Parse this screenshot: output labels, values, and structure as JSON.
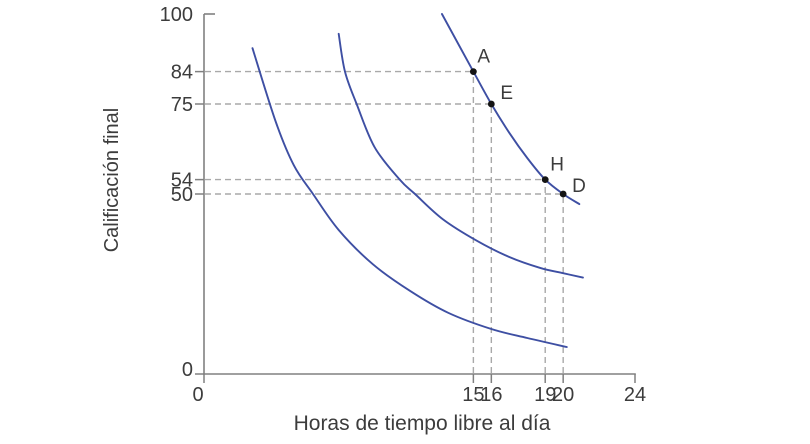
{
  "chart_data": {
    "type": "line",
    "title": "",
    "xlabel": "Horas de tiempo libre al día",
    "ylabel": "Calificación final",
    "xlim": [
      0,
      24
    ],
    "ylim": [
      0,
      100
    ],
    "grid": false,
    "legend": null,
    "x_ticks": [
      {
        "value": 0,
        "label": "0"
      },
      {
        "value": 15,
        "label": "15"
      },
      {
        "value": 16,
        "label": "16"
      },
      {
        "value": 19,
        "label": "19"
      },
      {
        "value": 20,
        "label": "20"
      },
      {
        "value": 24,
        "label": "24"
      }
    ],
    "y_ticks": [
      {
        "value": 0,
        "label": "0"
      },
      {
        "value": 50,
        "label": "50"
      },
      {
        "value": 54,
        "label": "54"
      },
      {
        "value": 75,
        "label": "75"
      },
      {
        "value": 84,
        "label": "84"
      },
      {
        "value": 100,
        "label": "100"
      }
    ],
    "series": [
      {
        "name": "indifference-curve-1",
        "points": [
          [
            2.7,
            90.5
          ],
          [
            4,
            70
          ],
          [
            5,
            58
          ],
          [
            6.07,
            50
          ],
          [
            7.5,
            40
          ],
          [
            9.4,
            30.5
          ],
          [
            11.5,
            23
          ],
          [
            13.6,
            17
          ],
          [
            16,
            12.5
          ],
          [
            18,
            10
          ],
          [
            20.2,
            7.5
          ]
        ]
      },
      {
        "name": "indifference-curve-2",
        "points": [
          [
            7.5,
            94.5
          ],
          [
            7.85,
            84
          ],
          [
            8.5,
            75
          ],
          [
            9.5,
            63
          ],
          [
            10.9,
            54
          ],
          [
            11.75,
            50
          ],
          [
            13.3,
            43
          ],
          [
            15.2,
            37
          ],
          [
            17,
            32.5
          ],
          [
            18.7,
            29.5
          ],
          [
            20,
            28
          ],
          [
            21.1,
            26.8
          ]
        ]
      },
      {
        "name": "indifference-curve-3",
        "points": [
          [
            13.25,
            100
          ],
          [
            15,
            84
          ],
          [
            16,
            75
          ],
          [
            17,
            67
          ],
          [
            18,
            60
          ],
          [
            19,
            54
          ],
          [
            20,
            50
          ],
          [
            20.9,
            47.2
          ]
        ]
      }
    ],
    "labeled_points": [
      {
        "label": "A",
        "x": 15,
        "y": 84
      },
      {
        "label": "E",
        "x": 16,
        "y": 75
      },
      {
        "label": "H",
        "x": 19,
        "y": 54
      },
      {
        "label": "D",
        "x": 20,
        "y": 50
      }
    ],
    "colors": {
      "curve": "#3e4fa3",
      "axis": "#808080",
      "guide": "#a9a9a9",
      "text": "#3c3c3c",
      "point": "#141414"
    }
  }
}
